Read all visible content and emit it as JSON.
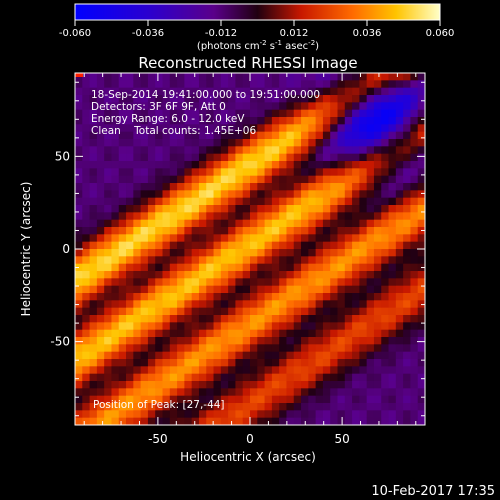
{
  "chart_data": {
    "type": "heatmap",
    "title": "Reconstructed RHESSI Image",
    "xlabel": "Heliocentric X (arcsec)",
    "ylabel": "Heliocentric Y (arcsec)",
    "xlim": [
      -95,
      95
    ],
    "ylim": [
      -95,
      95
    ],
    "xticks": [
      "-50",
      "0",
      "50"
    ],
    "yticks": [
      "50",
      "0",
      "-50"
    ],
    "colorbar": {
      "range": [
        -0.06,
        0.06
      ],
      "ticks": [
        "-0.060",
        "-0.036",
        "-0.012",
        "0.012",
        "0.036",
        "0.060"
      ],
      "unit_label": "(photons cm",
      "unit_exp1": "-2",
      "unit_mid": " s",
      "unit_exp2": "-1",
      "unit_mid2": " asec",
      "unit_exp3": "-2",
      "unit_end": ")"
    },
    "annotations": {
      "line1": "18-Sep-2014 19:41:00.000 to 19:51:00.000",
      "line2": "Detectors: 3F 6F 9F, Att 0",
      "line3": "Energy Range: 6.0 - 12.0 keV",
      "line4": "Clean    Total counts: 1.45E+06",
      "position": "Position of Peak: [27,-44]"
    },
    "peak": [
      27,
      -44
    ],
    "stripes": [
      {
        "offset": -38,
        "amplitude": 0.062
      },
      {
        "offset": -2,
        "amplitude": 0.058
      },
      {
        "offset": 34,
        "amplitude": 0.05
      },
      {
        "offset": 70,
        "amplitude": 0.035
      }
    ],
    "stripe_direction": [
      0.55,
      -0.835
    ],
    "negative_region": {
      "center": [
        70,
        70
      ],
      "value": -0.06
    }
  },
  "footer": {
    "timestamp": "10-Feb-2017 17:35"
  }
}
